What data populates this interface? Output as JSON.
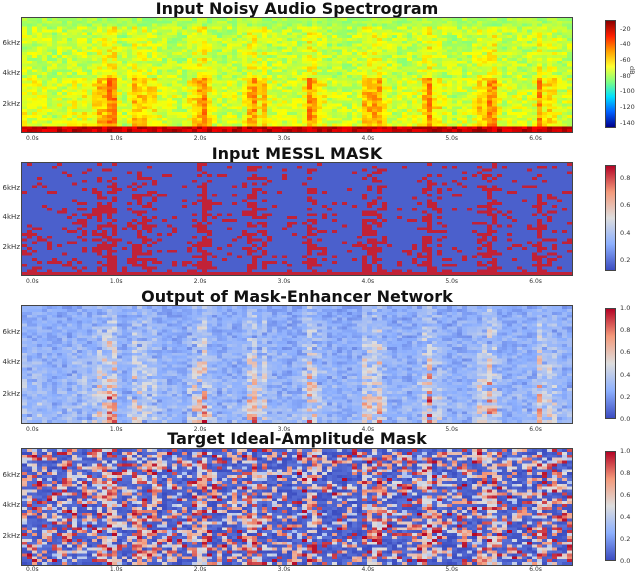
{
  "chart_data": [
    {
      "type": "heatmap",
      "title": "Input Noisy Audio Spectrogram",
      "yticks": [
        "6kHz",
        "4kHz",
        "2kHz"
      ],
      "xticks": [
        "0.0s",
        "1.0s",
        "2.0s",
        "3.0s",
        "4.0s",
        "5.0s",
        "6.0s"
      ],
      "colorbar_ticks": [
        "-20",
        "-40",
        "-60",
        "-80",
        "-100",
        "-120",
        "-140"
      ],
      "colorbar_label": "dB",
      "colormap": "jet",
      "clim": [
        -140,
        -20
      ]
    },
    {
      "type": "heatmap",
      "title": "Input MESSL MASK",
      "yticks": [
        "6kHz",
        "4kHz",
        "2kHz"
      ],
      "xticks": [
        "0.0s",
        "1.0s",
        "2.0s",
        "3.0s",
        "4.0s",
        "5.0s",
        "6.0s"
      ],
      "colorbar_ticks": [
        "0.8",
        "0.6",
        "0.4",
        "0.2"
      ],
      "colormap": "coolwarm",
      "clim": [
        0,
        1
      ]
    },
    {
      "type": "heatmap",
      "title": "Output of Mask-Enhancer Network",
      "yticks": [
        "6kHz",
        "4kHz",
        "2kHz"
      ],
      "xticks": [
        "0.0s",
        "1.0s",
        "2.0s",
        "3.0s",
        "4.0s",
        "5.0s",
        "6.0s"
      ],
      "colorbar_ticks": [
        "1.0",
        "0.8",
        "0.6",
        "0.4",
        "0.2",
        "0.0"
      ],
      "colormap": "coolwarm",
      "clim": [
        0,
        1
      ]
    },
    {
      "type": "heatmap",
      "title": "Target Ideal-Amplitude Mask",
      "yticks": [
        "6kHz",
        "4kHz",
        "2kHz"
      ],
      "xticks": [
        "0.0s",
        "1.0s",
        "2.0s",
        "3.0s",
        "4.0s",
        "5.0s",
        "6.0s"
      ],
      "colorbar_ticks": [
        "1.0",
        "0.8",
        "0.6",
        "0.4",
        "0.2",
        "0.0"
      ],
      "colormap": "coolwarm",
      "clim": [
        0,
        1
      ]
    }
  ]
}
